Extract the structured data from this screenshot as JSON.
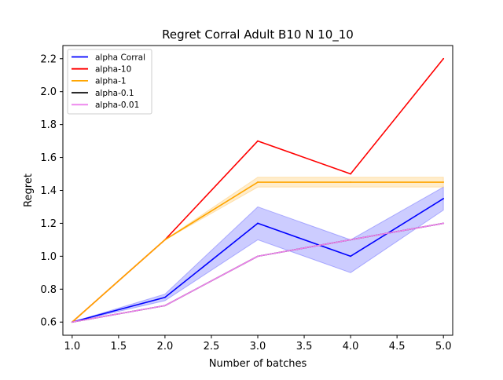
{
  "chart_data": {
    "type": "line",
    "title": "Regret Corral Adult B10 N 10_10",
    "xlabel": "Number of batches",
    "ylabel": "Regret",
    "x": [
      1.0,
      2.0,
      3.0,
      4.0,
      5.0
    ],
    "xlim": [
      0.9,
      5.1
    ],
    "ylim": [
      0.52,
      2.28
    ],
    "xticks": [
      "1.0",
      "1.5",
      "2.0",
      "2.5",
      "3.0",
      "3.5",
      "4.0",
      "4.5",
      "5.0"
    ],
    "yticks": [
      "0.6",
      "0.8",
      "1.0",
      "1.2",
      "1.4",
      "1.6",
      "1.8",
      "2.0",
      "2.2"
    ],
    "grid": false,
    "legend_position": "top-left",
    "series": [
      {
        "name": "alpha Corral",
        "color": "#0000ff",
        "values": [
          0.6,
          0.75,
          1.2,
          1.0,
          1.35
        ],
        "band_lower": [
          0.6,
          0.73,
          1.1,
          0.9,
          1.28
        ],
        "band_upper": [
          0.6,
          0.77,
          1.3,
          1.1,
          1.42
        ]
      },
      {
        "name": "alpha-10",
        "color": "#ff0000",
        "values": [
          0.6,
          1.1,
          1.7,
          1.5,
          2.2
        ]
      },
      {
        "name": "alpha-1",
        "color": "#ffa500",
        "values": [
          0.6,
          1.1,
          1.45,
          1.45,
          1.45
        ],
        "band_lower": [
          0.6,
          1.1,
          1.42,
          1.42,
          1.42
        ],
        "band_upper": [
          0.6,
          1.1,
          1.48,
          1.48,
          1.48
        ]
      },
      {
        "name": "alpha-0.1",
        "color": "#000000",
        "values": [
          0.6,
          0.7,
          1.0,
          1.1,
          1.2
        ]
      },
      {
        "name": "alpha-0.01",
        "color": "#ee82ee",
        "values": [
          0.6,
          0.7,
          1.0,
          1.1,
          1.2
        ]
      }
    ]
  }
}
